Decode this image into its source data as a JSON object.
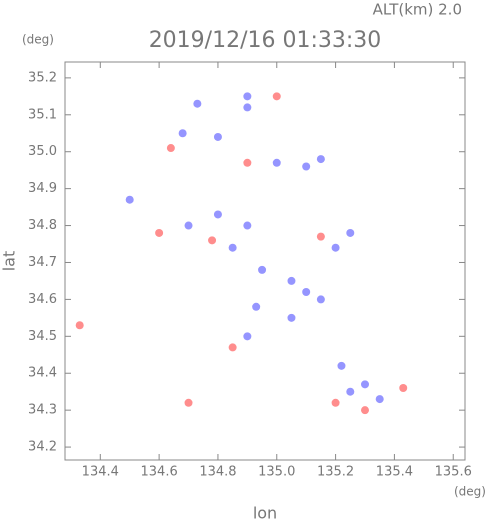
{
  "chart_data": {
    "type": "scatter",
    "title": "2019/12/16 01:33:30",
    "altitude_label": "ALT(km)  2.0",
    "y_unit": "(deg)",
    "x_unit": "(deg)",
    "x_label": "lon",
    "y_label": "lat",
    "xlim": [
      134.28,
      135.64
    ],
    "ylim": [
      34.165,
      35.243
    ],
    "xticks": [
      {
        "value": 134.4,
        "label": "134.4"
      },
      {
        "value": 134.6,
        "label": "134.6"
      },
      {
        "value": 134.8,
        "label": "134.8"
      },
      {
        "value": 135.0,
        "label": "135.0"
      },
      {
        "value": 135.2,
        "label": "135.2"
      },
      {
        "value": 135.4,
        "label": "135.4"
      },
      {
        "value": 135.6,
        "label": "135.6"
      }
    ],
    "yticks": [
      {
        "value": 34.2,
        "label": "34.2"
      },
      34.3,
      34.4,
      34.5,
      34.6,
      34.7,
      34.8,
      34.9,
      {
        "value": 35.0,
        "label": "35.0"
      },
      35.1,
      35.2
    ],
    "x": [
      134.73,
      134.9,
      135.0,
      134.68,
      134.8,
      134.64,
      134.9,
      135.0,
      135.1,
      135.15,
      134.5,
      134.6,
      134.7,
      134.8,
      134.78,
      134.85,
      134.9,
      135.15,
      135.25,
      135.2,
      134.95,
      135.05,
      135.1,
      134.93,
      134.9,
      134.85,
      135.15,
      135.05,
      135.25,
      135.3,
      135.2,
      135.3,
      135.35,
      135.43,
      135.22,
      134.33,
      134.7,
      134.9
    ],
    "y": [
      35.13,
      35.12,
      35.15,
      35.05,
      35.04,
      35.01,
      34.97,
      34.97,
      34.96,
      34.98,
      34.87,
      34.78,
      34.8,
      34.83,
      34.76,
      34.74,
      34.8,
      34.77,
      34.78,
      34.74,
      34.68,
      34.65,
      34.62,
      34.58,
      34.5,
      34.47,
      34.6,
      34.55,
      34.35,
      34.37,
      34.32,
      34.3,
      34.33,
      34.36,
      34.42,
      34.53,
      34.32,
      35.15
    ],
    "colors": [
      "#7a7aff",
      "#7a7aff",
      "#ff7070",
      "#7a7aff",
      "#7a7aff",
      "#ff7070",
      "#ff7070",
      "#7a7aff",
      "#7a7aff",
      "#7a7aff",
      "#7a7aff",
      "#ff7070",
      "#7a7aff",
      "#7a7aff",
      "#ff7070",
      "#7a7aff",
      "#7a7aff",
      "#ff7070",
      "#7a7aff",
      "#7a7aff",
      "#7a7aff",
      "#7a7aff",
      "#7a7aff",
      "#7a7aff",
      "#7a7aff",
      "#ff7070",
      "#7a7aff",
      "#7a7aff",
      "#7a7aff",
      "#7a7aff",
      "#ff7070",
      "#ff7070",
      "#7a7aff",
      "#ff7070",
      "#7a7aff",
      "#ff7070",
      "#ff7070",
      "#7a7aff"
    ]
  }
}
